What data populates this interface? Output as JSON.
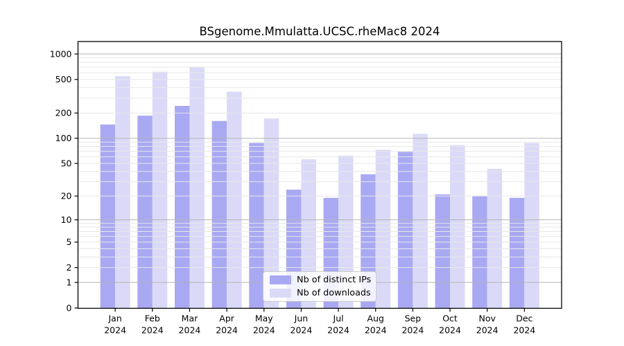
{
  "chart_data": {
    "type": "bar",
    "title": "BSgenome.Mmulatta.UCSC.rheMac8 2024",
    "categories": [
      "Jan 2024",
      "Feb 2024",
      "Mar 2024",
      "Apr 2024",
      "May 2024",
      "Jun 2024",
      "Jul 2024",
      "Aug 2024",
      "Sep 2024",
      "Oct 2024",
      "Nov 2024",
      "Dec 2024"
    ],
    "series": [
      {
        "name": "Nb of distinct IPs",
        "color": "#a9a9f3",
        "values": [
          146,
          186,
          243,
          161,
          88,
          24,
          19,
          37,
          69,
          21,
          20,
          19
        ]
      },
      {
        "name": "Nb of downloads",
        "color": "#dadaf8",
        "values": [
          546,
          617,
          703,
          358,
          172,
          56,
          62,
          73,
          113,
          83,
          43,
          88
        ]
      }
    ],
    "yscale": "log1p",
    "yticks": [
      0,
      1,
      2,
      5,
      10,
      20,
      50,
      100,
      200,
      500,
      1000
    ],
    "ylim": [
      0,
      1400
    ],
    "xlabel": "",
    "ylabel": "",
    "grid": "minor+major horizontal, drawn over bars",
    "legend_position": "lower center"
  }
}
